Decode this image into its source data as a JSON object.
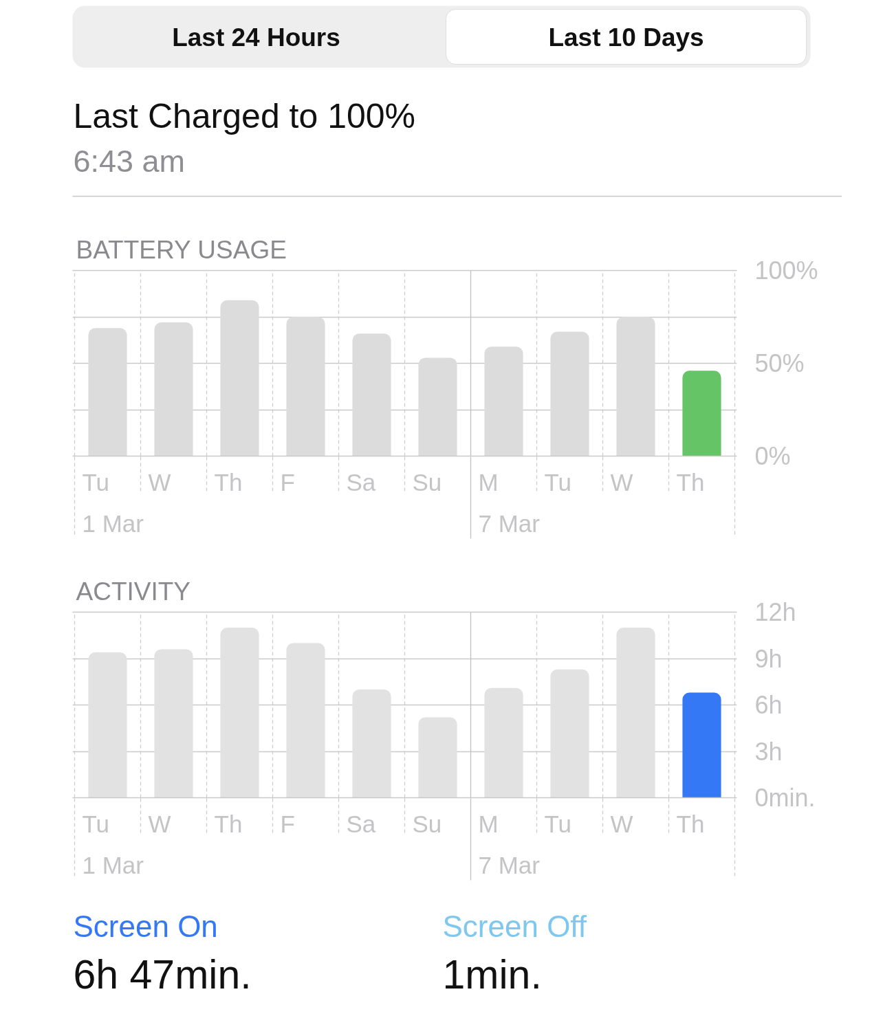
{
  "chart_data": [
    {
      "type": "other",
      "annotations": [
        "Last 24 Hours",
        "Last 10 Days",
        "Last Charged to 100%",
        "6:43 am"
      ]
    },
    {
      "type": "bar",
      "title": "BATTERY USAGE",
      "categories": [
        "Tu\n1 Mar",
        "W",
        "Th",
        "F",
        "Sa",
        "Su",
        "M\n7 Mar",
        "Tu",
        "W",
        "Th"
      ],
      "values": [
        69,
        72,
        84,
        75,
        66,
        53,
        59,
        67,
        75,
        46
      ],
      "colors": [
        "#dcdcdc",
        "#dcdcdc",
        "#dcdcdc",
        "#dcdcdc",
        "#dcdcdc",
        "#dcdcdc",
        "#dcdcdc",
        "#dcdcdc",
        "#dcdcdc",
        "#65c466"
      ],
      "ylim": [
        0,
        100
      ],
      "yticks": [
        {
          "value": 0,
          "label": "0%"
        },
        {
          "value": 25,
          "label": null
        },
        {
          "value": 50,
          "label": "50%"
        },
        {
          "value": 75,
          "label": null
        },
        {
          "value": 100,
          "label": "100%"
        }
      ],
      "grid": true,
      "ref_lines": [
        {
          "axis": "x",
          "value": "M\n7 Mar",
          "color": "#c0c0c4",
          "line_style": "solid"
        }
      ]
    },
    {
      "type": "bar",
      "title": "ACTIVITY",
      "categories": [
        "Tu\n1 Mar",
        "W",
        "Th",
        "F",
        "Sa",
        "Su",
        "M\n7 Mar",
        "Tu",
        "W",
        "Th"
      ],
      "values": [
        9.4,
        9.6,
        11.0,
        10.0,
        7.0,
        5.2,
        7.1,
        8.3,
        11.0,
        6.8
      ],
      "colors": [
        "#e2e2e2",
        "#e2e2e2",
        "#e2e2e2",
        "#e2e2e2",
        "#e2e2e2",
        "#e2e2e2",
        "#e2e2e2",
        "#e2e2e2",
        "#e2e2e2",
        "#3478f6"
      ],
      "ylim": [
        0,
        12
      ],
      "yticks": [
        {
          "value": 0,
          "label": "0min."
        },
        {
          "value": 3,
          "label": "3h"
        },
        {
          "value": 6,
          "label": "6h"
        },
        {
          "value": 9,
          "label": "9h"
        },
        {
          "value": 12,
          "label": "12h"
        }
      ],
      "grid": true,
      "ref_lines": [
        {
          "axis": "x",
          "value": "M\n7 Mar",
          "color": "#c0c0c4",
          "line_style": "solid"
        }
      ]
    },
    {
      "type": "other",
      "annotations": [
        "Screen On",
        "6h 47min.",
        "Screen Off",
        "1min."
      ]
    }
  ]
}
